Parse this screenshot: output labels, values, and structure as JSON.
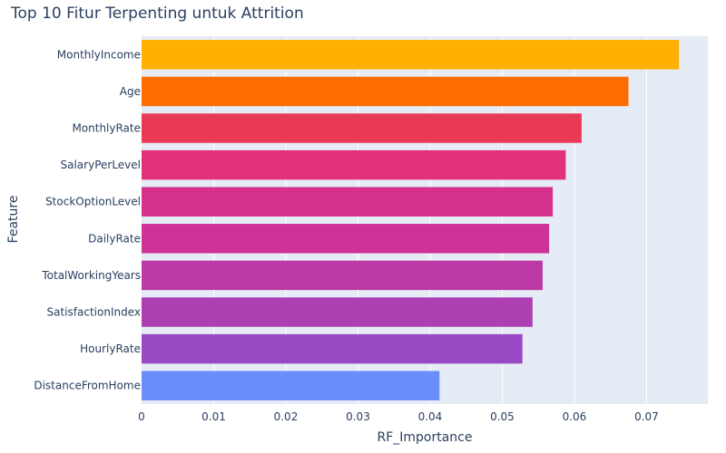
{
  "chart_data": {
    "type": "bar",
    "orientation": "horizontal",
    "title": "Top 10 Fitur Terpenting untuk Attrition",
    "xlabel": "RF_Importance",
    "ylabel": "Feature",
    "xlim": [
      0,
      0.0785
    ],
    "xticks": [
      0,
      0.01,
      0.02,
      0.03,
      0.04,
      0.05,
      0.06,
      0.07
    ],
    "xtick_labels": [
      "0",
      "0.01",
      "0.02",
      "0.03",
      "0.04",
      "0.05",
      "0.06",
      "0.07"
    ],
    "grid": true,
    "plot_background": "#e5ecf6",
    "categories": [
      "MonthlyIncome",
      "Age",
      "MonthlyRate",
      "SalaryPerLevel",
      "StockOptionLevel",
      "DailyRate",
      "TotalWorkingYears",
      "SatisfactionIndex",
      "HourlyRate",
      "DistanceFromHome"
    ],
    "values": [
      0.0745,
      0.0675,
      0.061,
      0.0588,
      0.057,
      0.0565,
      0.0556,
      0.0542,
      0.0528,
      0.0413
    ],
    "colors": [
      "#ffb000",
      "#ff6c00",
      "#e93a55",
      "#e3307a",
      "#d5308e",
      "#cd3297",
      "#bd39a6",
      "#ae3fb3",
      "#9a49c4",
      "#6b8df9"
    ]
  }
}
